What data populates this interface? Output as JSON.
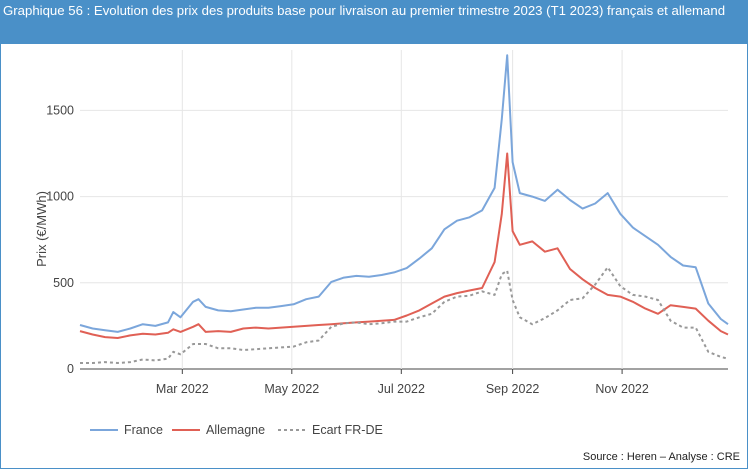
{
  "header": {
    "title": "Graphique 56 : Evolution des prix des produits base pour livraison au premier trimestre 2023 (T1 2023) français et allemand"
  },
  "footer": {
    "source": "Source : Heren – Analyse : CRE"
  },
  "colors": {
    "frame": "#4a90c8",
    "france": "#7ba6db",
    "allemagne": "#e06055",
    "ecart": "#999999"
  },
  "chart_data": {
    "type": "line",
    "ylabel": "Prix (€/MWh)",
    "xlabel": "",
    "ylim": [
      0,
      1850
    ],
    "xlim": [
      "2022-01-03",
      "2022-12-30"
    ],
    "yticks": [
      0,
      500,
      1000,
      1500
    ],
    "xticks": [
      {
        "date": "2022-03-01",
        "label": "Mar 2022"
      },
      {
        "date": "2022-05-01",
        "label": "May 2022"
      },
      {
        "date": "2022-07-01",
        "label": "Jul 2022"
      },
      {
        "date": "2022-09-01",
        "label": "Sep 2022"
      },
      {
        "date": "2022-11-01",
        "label": "Nov 2022"
      }
    ],
    "grid": true,
    "legend_position": "bottom-left",
    "series": [
      {
        "name": "France",
        "color": "#7ba6db",
        "dash": "",
        "points": [
          [
            "2022-01-03",
            255
          ],
          [
            "2022-01-10",
            235
          ],
          [
            "2022-01-17",
            225
          ],
          [
            "2022-01-24",
            215
          ],
          [
            "2022-01-31",
            235
          ],
          [
            "2022-02-07",
            260
          ],
          [
            "2022-02-14",
            250
          ],
          [
            "2022-02-21",
            270
          ],
          [
            "2022-02-24",
            330
          ],
          [
            "2022-02-28",
            300
          ],
          [
            "2022-03-07",
            390
          ],
          [
            "2022-03-10",
            405
          ],
          [
            "2022-03-14",
            360
          ],
          [
            "2022-03-21",
            340
          ],
          [
            "2022-03-28",
            335
          ],
          [
            "2022-04-04",
            345
          ],
          [
            "2022-04-11",
            355
          ],
          [
            "2022-04-18",
            355
          ],
          [
            "2022-04-25",
            365
          ],
          [
            "2022-05-02",
            375
          ],
          [
            "2022-05-09",
            405
          ],
          [
            "2022-05-16",
            420
          ],
          [
            "2022-05-23",
            505
          ],
          [
            "2022-05-30",
            530
          ],
          [
            "2022-06-06",
            540
          ],
          [
            "2022-06-13",
            535
          ],
          [
            "2022-06-20",
            545
          ],
          [
            "2022-06-27",
            560
          ],
          [
            "2022-07-04",
            585
          ],
          [
            "2022-07-11",
            640
          ],
          [
            "2022-07-18",
            700
          ],
          [
            "2022-07-25",
            810
          ],
          [
            "2022-08-01",
            860
          ],
          [
            "2022-08-08",
            880
          ],
          [
            "2022-08-15",
            920
          ],
          [
            "2022-08-22",
            1050
          ],
          [
            "2022-08-26",
            1450
          ],
          [
            "2022-08-29",
            1820
          ],
          [
            "2022-09-01",
            1200
          ],
          [
            "2022-09-05",
            1020
          ],
          [
            "2022-09-12",
            1000
          ],
          [
            "2022-09-19",
            975
          ],
          [
            "2022-09-26",
            1040
          ],
          [
            "2022-10-03",
            980
          ],
          [
            "2022-10-10",
            930
          ],
          [
            "2022-10-17",
            960
          ],
          [
            "2022-10-24",
            1020
          ],
          [
            "2022-10-31",
            900
          ],
          [
            "2022-11-07",
            820
          ],
          [
            "2022-11-14",
            770
          ],
          [
            "2022-11-21",
            720
          ],
          [
            "2022-11-28",
            650
          ],
          [
            "2022-12-05",
            600
          ],
          [
            "2022-12-12",
            590
          ],
          [
            "2022-12-19",
            380
          ],
          [
            "2022-12-26",
            290
          ],
          [
            "2022-12-30",
            260
          ]
        ]
      },
      {
        "name": "Allemagne",
        "color": "#e06055",
        "dash": "",
        "points": [
          [
            "2022-01-03",
            220
          ],
          [
            "2022-01-10",
            200
          ],
          [
            "2022-01-17",
            185
          ],
          [
            "2022-01-24",
            180
          ],
          [
            "2022-01-31",
            195
          ],
          [
            "2022-02-07",
            205
          ],
          [
            "2022-02-14",
            200
          ],
          [
            "2022-02-21",
            210
          ],
          [
            "2022-02-24",
            230
          ],
          [
            "2022-02-28",
            215
          ],
          [
            "2022-03-07",
            245
          ],
          [
            "2022-03-10",
            260
          ],
          [
            "2022-03-14",
            215
          ],
          [
            "2022-03-21",
            220
          ],
          [
            "2022-03-28",
            215
          ],
          [
            "2022-04-04",
            235
          ],
          [
            "2022-04-11",
            240
          ],
          [
            "2022-04-18",
            235
          ],
          [
            "2022-04-25",
            240
          ],
          [
            "2022-05-02",
            245
          ],
          [
            "2022-05-09",
            250
          ],
          [
            "2022-05-16",
            255
          ],
          [
            "2022-05-23",
            260
          ],
          [
            "2022-05-30",
            265
          ],
          [
            "2022-06-06",
            270
          ],
          [
            "2022-06-13",
            275
          ],
          [
            "2022-06-20",
            280
          ],
          [
            "2022-06-27",
            285
          ],
          [
            "2022-07-04",
            310
          ],
          [
            "2022-07-11",
            340
          ],
          [
            "2022-07-18",
            380
          ],
          [
            "2022-07-25",
            420
          ],
          [
            "2022-08-01",
            440
          ],
          [
            "2022-08-08",
            455
          ],
          [
            "2022-08-15",
            470
          ],
          [
            "2022-08-22",
            620
          ],
          [
            "2022-08-26",
            900
          ],
          [
            "2022-08-29",
            1250
          ],
          [
            "2022-09-01",
            800
          ],
          [
            "2022-09-05",
            720
          ],
          [
            "2022-09-12",
            740
          ],
          [
            "2022-09-19",
            680
          ],
          [
            "2022-09-26",
            700
          ],
          [
            "2022-10-03",
            580
          ],
          [
            "2022-10-10",
            520
          ],
          [
            "2022-10-17",
            470
          ],
          [
            "2022-10-24",
            430
          ],
          [
            "2022-10-31",
            420
          ],
          [
            "2022-11-07",
            390
          ],
          [
            "2022-11-14",
            350
          ],
          [
            "2022-11-21",
            320
          ],
          [
            "2022-11-28",
            370
          ],
          [
            "2022-12-05",
            360
          ],
          [
            "2022-12-12",
            350
          ],
          [
            "2022-12-19",
            280
          ],
          [
            "2022-12-26",
            220
          ],
          [
            "2022-12-30",
            200
          ]
        ]
      },
      {
        "name": "Ecart FR-DE",
        "color": "#999999",
        "dash": "3,3",
        "points": [
          [
            "2022-01-03",
            35
          ],
          [
            "2022-01-10",
            35
          ],
          [
            "2022-01-17",
            40
          ],
          [
            "2022-01-24",
            35
          ],
          [
            "2022-01-31",
            40
          ],
          [
            "2022-02-07",
            55
          ],
          [
            "2022-02-14",
            50
          ],
          [
            "2022-02-21",
            60
          ],
          [
            "2022-02-24",
            100
          ],
          [
            "2022-02-28",
            85
          ],
          [
            "2022-03-07",
            145
          ],
          [
            "2022-03-10",
            145
          ],
          [
            "2022-03-14",
            145
          ],
          [
            "2022-03-21",
            120
          ],
          [
            "2022-03-28",
            120
          ],
          [
            "2022-04-04",
            110
          ],
          [
            "2022-04-11",
            115
          ],
          [
            "2022-04-18",
            120
          ],
          [
            "2022-04-25",
            125
          ],
          [
            "2022-05-02",
            130
          ],
          [
            "2022-05-09",
            155
          ],
          [
            "2022-05-16",
            165
          ],
          [
            "2022-05-23",
            245
          ],
          [
            "2022-05-30",
            265
          ],
          [
            "2022-06-06",
            270
          ],
          [
            "2022-06-13",
            260
          ],
          [
            "2022-06-20",
            265
          ],
          [
            "2022-06-27",
            275
          ],
          [
            "2022-07-04",
            275
          ],
          [
            "2022-07-11",
            300
          ],
          [
            "2022-07-18",
            320
          ],
          [
            "2022-07-25",
            390
          ],
          [
            "2022-08-01",
            420
          ],
          [
            "2022-08-08",
            425
          ],
          [
            "2022-08-15",
            450
          ],
          [
            "2022-08-22",
            430
          ],
          [
            "2022-08-26",
            550
          ],
          [
            "2022-08-29",
            570
          ],
          [
            "2022-09-01",
            400
          ],
          [
            "2022-09-05",
            300
          ],
          [
            "2022-09-12",
            260
          ],
          [
            "2022-09-19",
            295
          ],
          [
            "2022-09-26",
            340
          ],
          [
            "2022-10-03",
            400
          ],
          [
            "2022-10-10",
            410
          ],
          [
            "2022-10-17",
            490
          ],
          [
            "2022-10-24",
            590
          ],
          [
            "2022-10-31",
            480
          ],
          [
            "2022-11-07",
            430
          ],
          [
            "2022-11-14",
            420
          ],
          [
            "2022-11-21",
            400
          ],
          [
            "2022-11-28",
            280
          ],
          [
            "2022-12-05",
            240
          ],
          [
            "2022-12-12",
            240
          ],
          [
            "2022-12-19",
            100
          ],
          [
            "2022-12-26",
            70
          ],
          [
            "2022-12-30",
            60
          ]
        ]
      }
    ]
  }
}
